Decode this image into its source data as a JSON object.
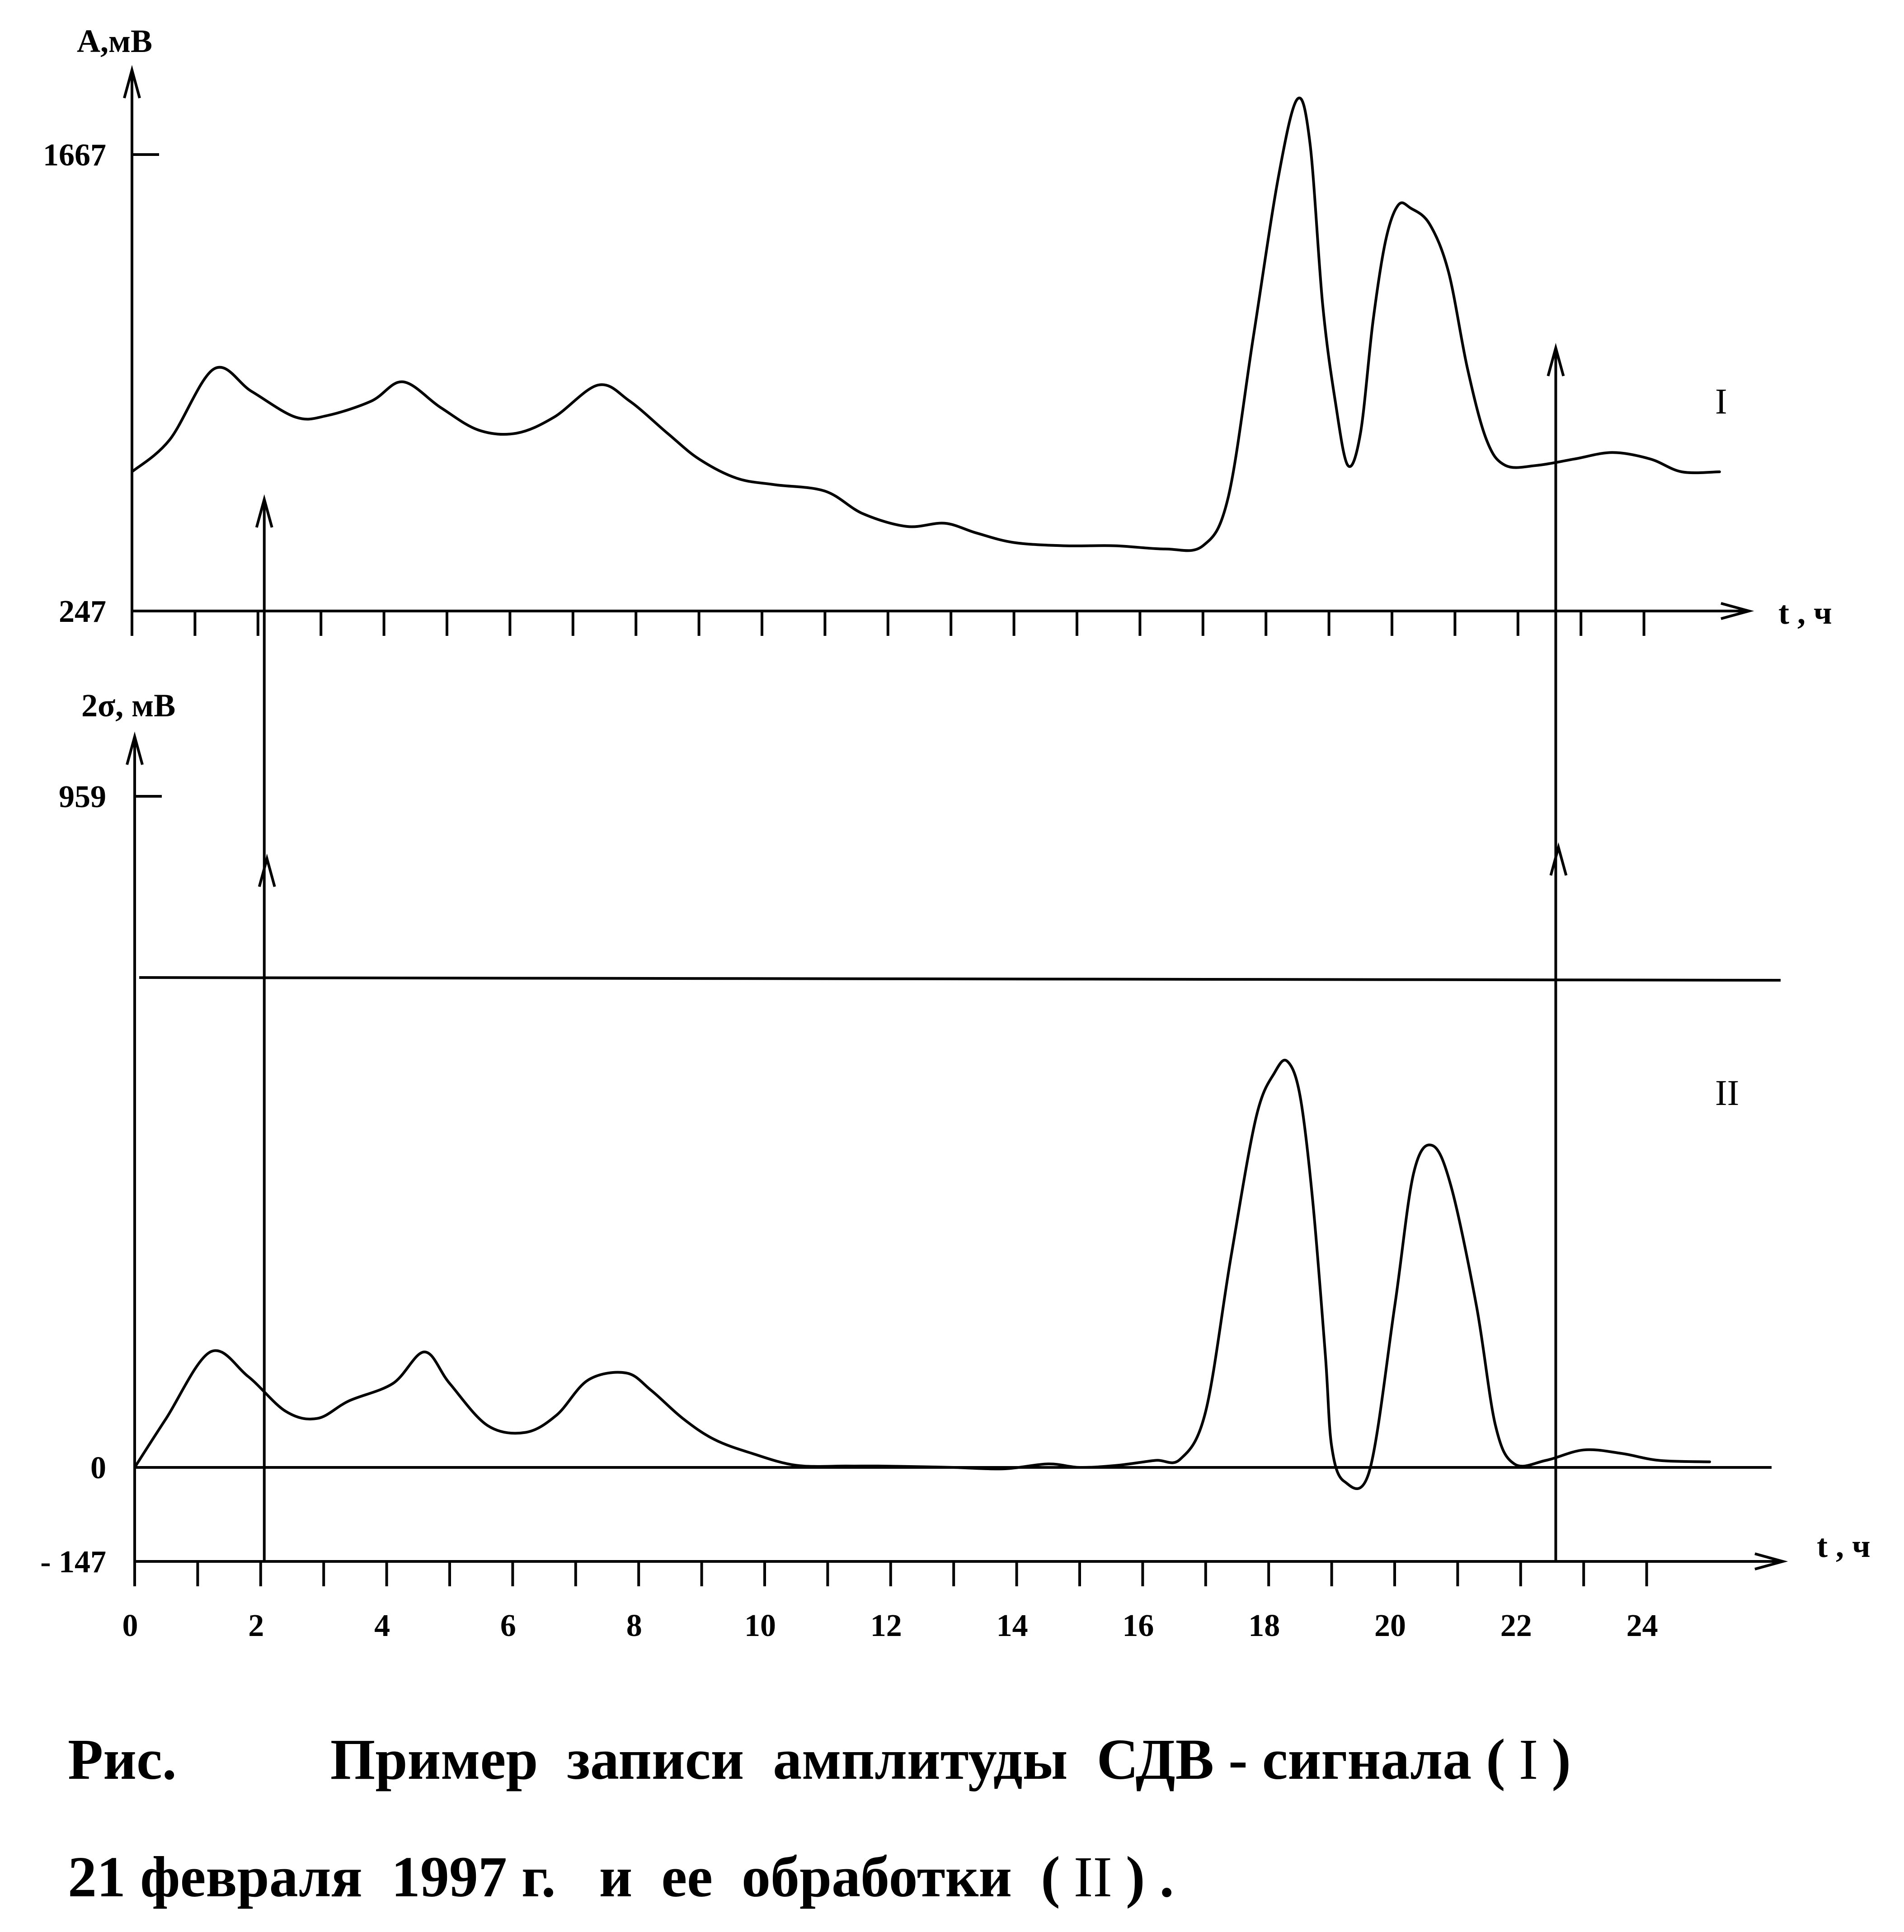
{
  "chart_data": [
    {
      "type": "line",
      "ylabel": "А,мВ",
      "xlabel": "t , ч",
      "y_ticks": [
        "1667",
        "247"
      ],
      "ylim": [
        247,
        1667
      ],
      "xlim": [
        0,
        25.3
      ],
      "series_label": "I",
      "x": [
        0,
        0.6,
        1.3,
        1.9,
        2.6,
        3.1,
        3.8,
        4.3,
        4.9,
        5.5,
        6.1,
        6.7,
        7.4,
        7.9,
        8.5,
        9.0,
        9.6,
        10.2,
        11.0,
        11.6,
        12.3,
        12.9,
        13.4,
        14.0,
        14.8,
        15.6,
        16.4,
        17.0,
        17.4,
        17.8,
        18.2,
        18.5,
        18.7,
        18.9,
        19.1,
        19.3,
        19.5,
        19.7,
        19.9,
        20.1,
        20.3,
        20.6,
        20.9,
        21.2,
        21.5,
        21.8,
        22.3,
        22.9,
        23.5,
        24.1,
        24.6,
        25.2
      ],
      "values": [
        680,
        780,
        1000,
        930,
        850,
        855,
        900,
        960,
        880,
        810,
        800,
        850,
        950,
        900,
        800,
        720,
        660,
        640,
        620,
        550,
        510,
        520,
        490,
        460,
        450,
        450,
        440,
        450,
        600,
        1100,
        1600,
        1840,
        1700,
        1200,
        900,
        700,
        800,
        1150,
        1400,
        1510,
        1500,
        1450,
        1300,
        1000,
        780,
        700,
        700,
        720,
        740,
        720,
        680,
        680
      ],
      "markers": [
        {
          "x": 2.1,
          "direction": "up"
        },
        {
          "x": 22.6,
          "direction": "up"
        }
      ]
    },
    {
      "type": "line",
      "ylabel": "2σ, мВ",
      "xlabel": "t , ч",
      "y_ticks": [
        "959",
        "0",
        "- 147"
      ],
      "ylim": [
        -147,
        959
      ],
      "xlim": [
        0,
        25.3
      ],
      "x_tick_labels": [
        "0",
        "2",
        "4",
        "6",
        "8",
        "10",
        "12",
        "14",
        "16",
        "18",
        "20",
        "22",
        "24"
      ],
      "series_label": "II",
      "threshold": 700,
      "x": [
        0,
        0.5,
        1.2,
        1.8,
        2.4,
        2.9,
        3.4,
        4.1,
        4.6,
        5.0,
        5.6,
        6.2,
        6.7,
        7.2,
        7.8,
        8.2,
        8.7,
        9.2,
        9.8,
        10.5,
        11.3,
        11.8,
        12.5,
        13.0,
        13.8,
        14.5,
        15.0,
        15.6,
        16.2,
        16.6,
        17.0,
        17.4,
        17.8,
        18.1,
        18.3,
        18.5,
        18.7,
        18.9,
        19.0,
        19.2,
        19.6,
        20.0,
        20.3,
        20.6,
        20.9,
        21.3,
        21.6,
        21.9,
        22.4,
        23.0,
        23.6,
        24.2,
        25.0
      ],
      "values": [
        0,
        70,
        165,
        130,
        80,
        70,
        95,
        120,
        165,
        120,
        60,
        50,
        75,
        125,
        135,
        110,
        70,
        40,
        20,
        3,
        2,
        2,
        1,
        0,
        -2,
        5,
        0,
        3,
        10,
        12,
        80,
        300,
        500,
        565,
        580,
        530,
        380,
        160,
        30,
        -20,
        -5,
        230,
        420,
        460,
        400,
        230,
        60,
        5,
        10,
        25,
        20,
        10,
        8
      ],
      "markers": [
        {
          "x": 2.1,
          "direction": "up"
        },
        {
          "x": 22.6,
          "direction": "up"
        }
      ]
    }
  ],
  "caption": {
    "line1_prefix": "Рис.",
    "line1_text": "Пример  записи  амплитуды  СДВ - сигнала (",
    "line1_mark": "I",
    "line1_close": ")",
    "line2_text": "21 февраля  1997 г.   и  ее  обработки  (",
    "line2_mark": "II",
    "line2_close": ") ."
  }
}
